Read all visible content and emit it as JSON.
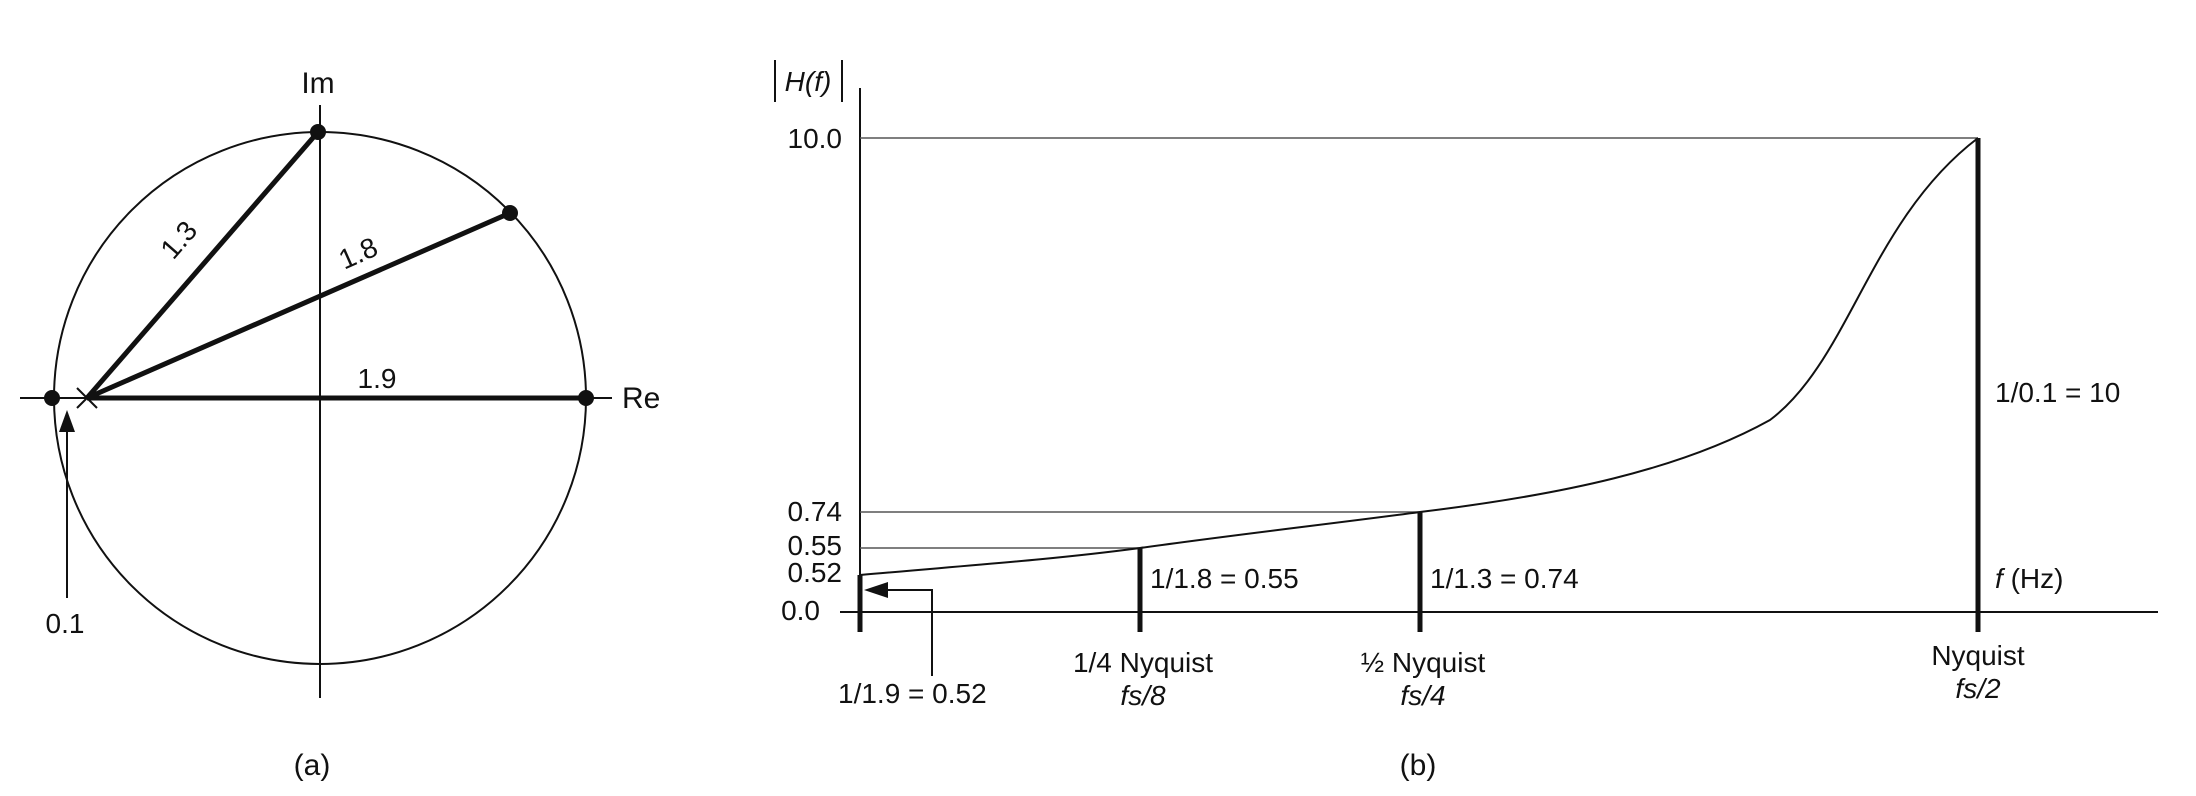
{
  "panel_a": {
    "label": "(a)",
    "axis_im": "Im",
    "axis_re": "Re",
    "radius_labels": [
      "1.3",
      "1.8",
      "1.9"
    ],
    "zero_label": "0.1"
  },
  "panel_b": {
    "label": "(b)",
    "y_axis_label": "H(f)",
    "x_axis_label_f": "f",
    "x_axis_label_unit": "(Hz)",
    "y_ticks": [
      "10.0",
      "0.74",
      "0.55",
      "0.52",
      "0.0"
    ],
    "value_labels": {
      "at_zero": "1/1.9 = 0.52",
      "at_quarter": "1/1.8 = 0.55",
      "at_half": "1/1.3 = 0.74",
      "at_nyquist": "1/0.1 = 10"
    },
    "x_markers": {
      "quarter_name": "1/4 Nyquist",
      "quarter_fs": "fs/8",
      "half_name": "½ Nyquist",
      "half_fs": "fs/4",
      "nyquist_name": "Nyquist",
      "nyquist_fs": "fs/2"
    }
  },
  "colors": {
    "ink": "#111111",
    "guide": "#555555"
  }
}
